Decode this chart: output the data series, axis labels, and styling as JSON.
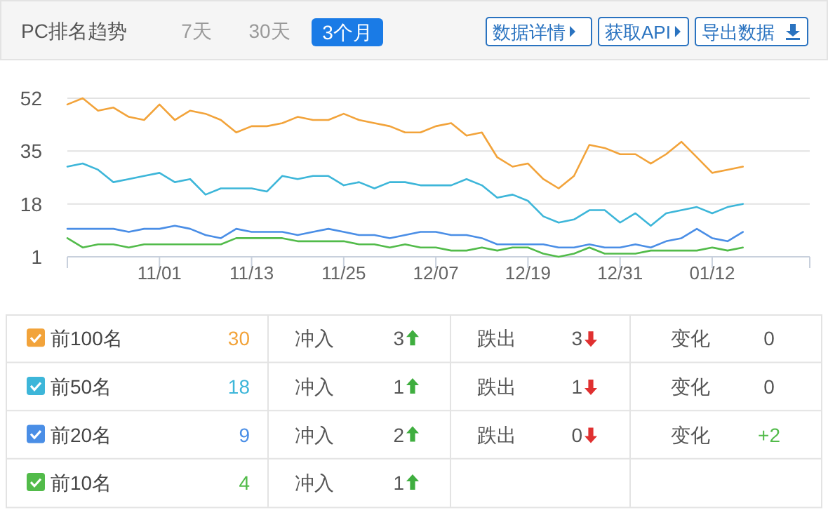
{
  "chart_data": {
    "type": "line",
    "title": "PC排名趋势",
    "categories": [
      null,
      null,
      null,
      null,
      null,
      null,
      "11/01",
      null,
      null,
      null,
      null,
      null,
      "11/13",
      null,
      null,
      null,
      null,
      null,
      "11/25",
      null,
      null,
      null,
      null,
      null,
      "12/07",
      null,
      null,
      null,
      null,
      null,
      "12/19",
      null,
      null,
      null,
      null,
      null,
      "12/31",
      null,
      null,
      null,
      null,
      null,
      "01/12",
      null,
      null
    ],
    "series": [
      {
        "name": "前100名",
        "color": "#f2a33a",
        "values": [
          50,
          52,
          48,
          49,
          46,
          45,
          50,
          45,
          48,
          47,
          45,
          41,
          43,
          43,
          44,
          46,
          45,
          45,
          47,
          45,
          44,
          43,
          41,
          41,
          43,
          44,
          40,
          41,
          33,
          30,
          31,
          26,
          23,
          27,
          37,
          36,
          34,
          34,
          31,
          34,
          38,
          33,
          28,
          29,
          30
        ]
      },
      {
        "name": "前50名",
        "color": "#3db6d9",
        "values": [
          30,
          31,
          29,
          25,
          26,
          27,
          28,
          25,
          26,
          21,
          23,
          23,
          23,
          22,
          27,
          26,
          27,
          27,
          24,
          25,
          23,
          25,
          25,
          24,
          24,
          24,
          26,
          24,
          20,
          21,
          19,
          14,
          12,
          13,
          16,
          16,
          12,
          15,
          11,
          15,
          16,
          17,
          15,
          17,
          18
        ]
      },
      {
        "name": "前20名",
        "color": "#4a8ee6",
        "values": [
          10,
          10,
          10,
          10,
          9,
          10,
          10,
          11,
          10,
          8,
          7,
          10,
          9,
          9,
          9,
          8,
          9,
          10,
          9,
          8,
          8,
          7,
          8,
          9,
          9,
          8,
          8,
          7,
          5,
          5,
          5,
          5,
          4,
          4,
          5,
          4,
          4,
          5,
          4,
          6,
          7,
          10,
          7,
          6,
          9
        ]
      },
      {
        "name": "前10名",
        "color": "#52bb4a",
        "values": [
          7,
          4,
          5,
          5,
          4,
          5,
          5,
          5,
          5,
          5,
          5,
          7,
          7,
          7,
          7,
          6,
          6,
          6,
          6,
          5,
          5,
          4,
          5,
          4,
          4,
          3,
          3,
          4,
          3,
          4,
          4,
          2,
          1,
          2,
          4,
          2,
          2,
          2,
          3,
          3,
          3,
          3,
          4,
          3,
          4
        ]
      }
    ],
    "ylim": [
      1,
      52
    ],
    "yticks": [
      1,
      18,
      35,
      52
    ],
    "grid": "y",
    "legend": "bottom",
    "marker": "none",
    "line_style": "solid",
    "annotations": [
      "7天",
      "30天",
      "3个月",
      "数据详情",
      "获取API",
      "导出数据",
      "30",
      "18",
      "9",
      "4",
      "冲入",
      "3",
      "跌出",
      "3",
      "变化",
      "0",
      "冲入",
      "1",
      "跌出",
      "1",
      "变化",
      "0",
      "冲入",
      "2",
      "跌出",
      "0",
      "变化",
      "+2",
      "冲入",
      "1"
    ]
  }
}
